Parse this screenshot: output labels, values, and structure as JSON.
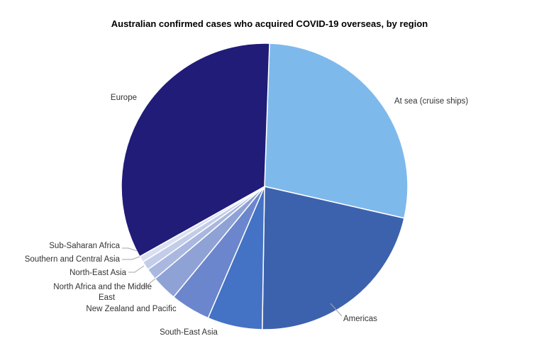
{
  "chart_data": {
    "type": "pie",
    "title": "Australian confirmed cases who acquired COVID-19 overseas, by region",
    "start_angle_deg": 2,
    "direction": "clockwise",
    "legend": "none (data labels with leader lines)",
    "slices": [
      {
        "label": "At sea (cruise ships)",
        "value": 28.0,
        "color": "#7eb9ec"
      },
      {
        "label": "Americas",
        "value": 21.7,
        "color": "#3d62ad"
      },
      {
        "label": "South-East Asia",
        "value": 6.2,
        "color": "#4472c4"
      },
      {
        "label": "New Zealand and Pacific",
        "value": 4.5,
        "color": "#6b86cc"
      },
      {
        "label": "North Africa and the Middle East",
        "value": 2.9,
        "color": "#8fa2d6"
      },
      {
        "label": "North-East Asia",
        "value": 1.3,
        "color": "#aab8df"
      },
      {
        "label": "Southern and Central Asia",
        "value": 1.0,
        "color": "#c3cde9"
      },
      {
        "label": "Sub-Saharan Africa",
        "value": 0.7,
        "color": "#dae0f1"
      },
      {
        "label": "Europe",
        "value": 33.7,
        "color": "#201c78"
      }
    ]
  }
}
